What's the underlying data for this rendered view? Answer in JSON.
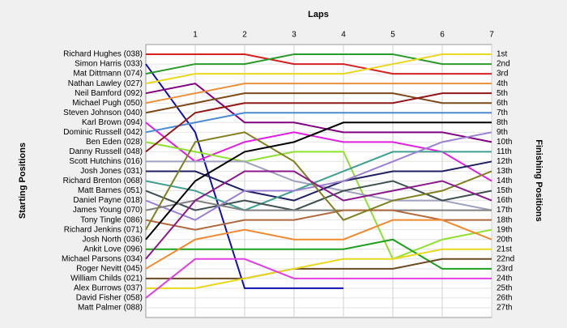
{
  "chart_data": {
    "type": "line",
    "title": "Laps",
    "ylabel": "Starting Positions",
    "y2label": "Finishing Positions",
    "xlim": [
      0,
      7
    ],
    "xticks": [
      1,
      2,
      3,
      4,
      5,
      6,
      7
    ],
    "ylim": [
      28,
      0
    ],
    "y2ticks": [
      {
        "value": 1,
        "label": "1st"
      },
      {
        "value": 2,
        "label": "2nd"
      },
      {
        "value": 3,
        "label": "3rd"
      },
      {
        "value": 4,
        "label": "4th"
      },
      {
        "value": 5,
        "label": "5th"
      },
      {
        "value": 6,
        "label": "6th"
      },
      {
        "value": 7,
        "label": "7th"
      },
      {
        "value": 8,
        "label": "8th"
      },
      {
        "value": 9,
        "label": "9th"
      },
      {
        "value": 10,
        "label": "10th"
      },
      {
        "value": 11,
        "label": "11th"
      },
      {
        "value": 12,
        "label": "12th"
      },
      {
        "value": 13,
        "label": "13th"
      },
      {
        "value": 14,
        "label": "14th"
      },
      {
        "value": 15,
        "label": "15th"
      },
      {
        "value": 16,
        "label": "16th"
      },
      {
        "value": 17,
        "label": "17th"
      },
      {
        "value": 18,
        "label": "18th"
      },
      {
        "value": 19,
        "label": "19th"
      },
      {
        "value": 20,
        "label": "20th"
      },
      {
        "value": 21,
        "label": "21st"
      },
      {
        "value": 22,
        "label": "22nd"
      },
      {
        "value": 23,
        "label": "23rd"
      },
      {
        "value": 24,
        "label": "24th"
      },
      {
        "value": 25,
        "label": "25th"
      },
      {
        "value": 26,
        "label": "26th"
      },
      {
        "value": 27,
        "label": "27th"
      }
    ],
    "grid": true,
    "x": [
      0,
      1,
      2,
      3,
      4,
      5,
      6,
      7
    ],
    "series": [
      {
        "name": "Richard Hughes (038)",
        "color": "#d42020",
        "values": [
          1,
          1,
          1,
          2,
          2,
          3,
          3,
          3
        ]
      },
      {
        "name": "Simon Harris (033)",
        "color": "#1010b0",
        "values": [
          2,
          9,
          25,
          25,
          25,
          null,
          null,
          null
        ]
      },
      {
        "name": "Mat Dittmann (074)",
        "color": "#2a9a2a",
        "values": [
          3,
          2,
          2,
          1,
          1,
          1,
          2,
          2
        ]
      },
      {
        "name": "Nathan Lawley (027)",
        "color": "#e8d820",
        "values": [
          4,
          3,
          3,
          3,
          3,
          2,
          1,
          1
        ]
      },
      {
        "name": "Neil Bamford (092)",
        "color": "#800080",
        "values": [
          5,
          4,
          8,
          8,
          9,
          9,
          9,
          10
        ]
      },
      {
        "name": "Michael Pugh (050)",
        "color": "#e8903a",
        "values": [
          6,
          5,
          4,
          4,
          4,
          4,
          4,
          4
        ]
      },
      {
        "name": "Steven Johnson (040)",
        "color": "#7a4a1a",
        "values": [
          7,
          6,
          5,
          5,
          5,
          5,
          6,
          6
        ]
      },
      {
        "name": "Karl Brown (094)",
        "color": "#e020e0",
        "values": [
          8,
          12,
          10,
          9,
          10,
          10,
          11,
          14
        ]
      },
      {
        "name": "Dominic Russell (042)",
        "color": "#4a8ad0",
        "values": [
          9,
          8,
          7,
          7,
          7,
          7,
          7,
          7
        ]
      },
      {
        "name": "Ben Eden (028)",
        "color": "#90e030",
        "values": [
          10,
          11,
          12,
          11,
          11,
          22,
          20,
          19
        ]
      },
      {
        "name": "Danny Russell (048)",
        "color": "#901818",
        "values": [
          11,
          7,
          6,
          6,
          6,
          6,
          5,
          5
        ]
      },
      {
        "name": "Scott Hutchins (016)",
        "color": "#a0a0c0",
        "values": [
          12,
          12,
          12,
          14,
          15,
          16,
          16,
          17
        ]
      },
      {
        "name": "Josh Jones (031)",
        "color": "#202060",
        "values": [
          13,
          13,
          15,
          16,
          14,
          13,
          13,
          12
        ]
      },
      {
        "name": "Richard Brenton (068)",
        "color": "#40a090",
        "values": [
          14,
          15,
          17,
          15,
          13,
          11,
          11,
          11
        ]
      },
      {
        "name": "Matt Barnes (051)",
        "color": "#405050",
        "values": [
          15,
          17,
          16,
          17,
          15,
          14,
          16,
          15
        ]
      },
      {
        "name": "Daniel Payne (018)",
        "color": "#9a80d0",
        "values": [
          16,
          18,
          15,
          15,
          14,
          12,
          10,
          9
        ]
      },
      {
        "name": "James Young (070)",
        "color": "#808080",
        "values": [
          17,
          16,
          17,
          17,
          17,
          17,
          17,
          17
        ]
      },
      {
        "name": "Tony Tingle (086)",
        "color": "#b06a40",
        "values": [
          18,
          19,
          18,
          18,
          17,
          17,
          18,
          18
        ]
      },
      {
        "name": "Richard Jenkins (071)",
        "color": "#808020",
        "values": [
          19,
          10,
          9,
          12,
          18,
          16,
          15,
          13
        ]
      },
      {
        "name": "Josh North (036)",
        "color": "#000000",
        "values": [
          20,
          14,
          11,
          10,
          8,
          8,
          8,
          8
        ]
      },
      {
        "name": "Ankit Love (096)",
        "color": "#20a020",
        "values": [
          21,
          21,
          21,
          21,
          21,
          20,
          23,
          23
        ]
      },
      {
        "name": "Michael Parsons (034)",
        "color": "#8a1a8a",
        "values": [
          22,
          16,
          13,
          13,
          16,
          15,
          14,
          16
        ]
      },
      {
        "name": "Roger Nevitt (045)",
        "color": "#f08a30",
        "values": [
          23,
          20,
          19,
          20,
          20,
          18,
          18,
          20
        ]
      },
      {
        "name": "William Childs (021)",
        "color": "#6a4a20",
        "values": [
          24,
          24,
          24,
          23,
          23,
          23,
          22,
          22
        ]
      },
      {
        "name": "Alex Burrows (037)",
        "color": "#e8d820",
        "values": [
          25,
          25,
          24,
          23,
          22,
          22,
          21,
          21
        ]
      },
      {
        "name": "David Fisher (058)",
        "color": "#e040e0",
        "values": [
          26,
          22,
          22,
          24,
          24,
          24,
          24,
          24
        ]
      },
      {
        "name": "Matt Palmer (088)",
        "color": "#888888",
        "values": [
          27,
          null,
          null,
          null,
          null,
          null,
          null,
          null
        ]
      }
    ]
  }
}
